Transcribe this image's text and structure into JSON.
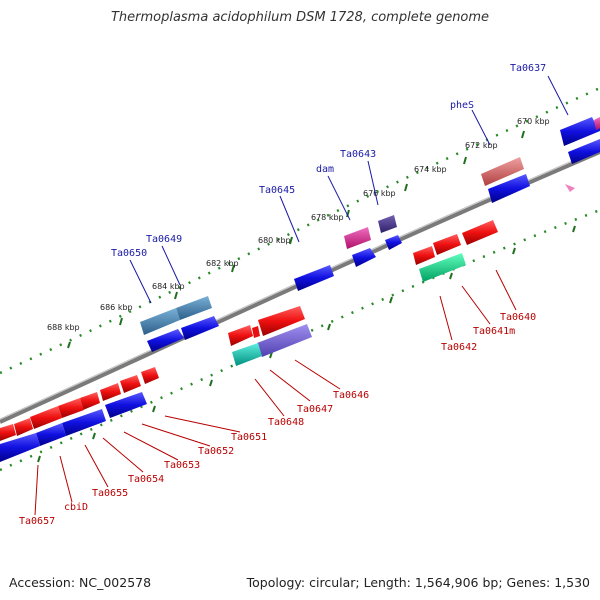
{
  "title": "Thermoplasma acidophilum DSM 1728, complete genome",
  "footer": {
    "accession": "Accession: NC_002578",
    "stats": "Topology: circular; Length: 1,564,906 bp; Genes: 1,530"
  },
  "scale_labels": [
    "670 kbp",
    "672 kbp",
    "674 kbp",
    "676 kbp",
    "678 kbp",
    "680 kbp",
    "682 kbp",
    "684 kbp",
    "686 kbp",
    "688 kbp"
  ],
  "gene_labels_top": [
    "Ta0637",
    "pheS",
    "Ta0643",
    "dam",
    "Ta0645",
    "Ta0649",
    "Ta0650"
  ],
  "gene_labels_bottom": [
    "Ta0640",
    "Ta0641m",
    "Ta0642",
    "Ta0646",
    "Ta0647",
    "Ta0648",
    "Ta0651",
    "Ta0652",
    "Ta0653",
    "Ta0654",
    "Ta0655",
    "cbiD",
    "Ta0657"
  ],
  "colors": {
    "forward": "#1010e0",
    "reverse": "#e81010",
    "backbone": "#808080",
    "ticks": "#2a8a2a",
    "label_top": "#1a1aa6",
    "label_bottom": "#b80000"
  }
}
